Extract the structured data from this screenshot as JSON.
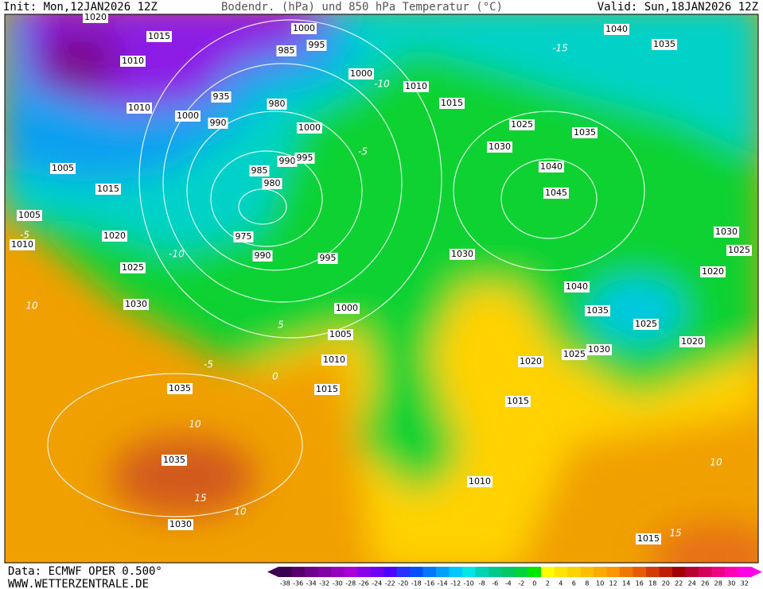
{
  "header": {
    "init": "Init: Mon,12JAN2026 12Z",
    "title": "Bodendr. (hPa) und 850 hPa Temperatur (°C)",
    "valid": "Valid: Sun,18JAN2026 12Z"
  },
  "footer": {
    "source": "Data: ECMWF OPER 0.500°",
    "website": "WWW.WETTERZENTRALE.DE"
  },
  "map": {
    "isobar_labels": [
      1020,
      1015,
      1010,
      1010,
      1000,
      990,
      935,
      1000,
      985,
      995,
      1000,
      980,
      1000,
      990,
      995,
      985,
      980,
      975,
      990,
      995,
      1000,
      1005,
      1010,
      1015,
      1005,
      1015,
      1005,
      1010,
      1020,
      1025,
      1030,
      1035,
      1035,
      1030,
      1010,
      1015,
      1025,
      1030,
      1035,
      1040,
      1045,
      1040,
      1035,
      1030,
      1040,
      1035,
      1025,
      1030,
      1025,
      1020,
      1015,
      1010,
      1015,
      1030,
      1025,
      1020,
      1020
    ],
    "temperature_labels": [
      -5,
      10,
      5,
      0,
      -5,
      10,
      15,
      10,
      15,
      10,
      -10,
      -5,
      -10,
      -15
    ]
  },
  "legend": {
    "values": [
      -38,
      -36,
      -34,
      -32,
      -30,
      -28,
      -26,
      -24,
      -22,
      -20,
      -18,
      -16,
      -14,
      -12,
      -10,
      -8,
      -6,
      -4,
      -2,
      0,
      2,
      4,
      6,
      8,
      10,
      12,
      14,
      16,
      18,
      20,
      22,
      24,
      26,
      28,
      30,
      32
    ],
    "colors": [
      "#3c0050",
      "#55006e",
      "#6e008c",
      "#8200a5",
      "#9600be",
      "#aa00d7",
      "#8c00e6",
      "#6e00f0",
      "#5000ff",
      "#2832ff",
      "#0050ff",
      "#0078ff",
      "#00a0ff",
      "#00c8ff",
      "#00e6e6",
      "#00d2b4",
      "#00c88c",
      "#00c864",
      "#00d23c",
      "#00e600",
      "#ffff00",
      "#ffe600",
      "#ffd200",
      "#ffbe00",
      "#ffaa00",
      "#ff9600",
      "#f07800",
      "#e65a00",
      "#d23c00",
      "#be1e00",
      "#a00000",
      "#b40032",
      "#d2005a",
      "#f00082",
      "#ff00b4",
      "#ff00e6"
    ]
  }
}
